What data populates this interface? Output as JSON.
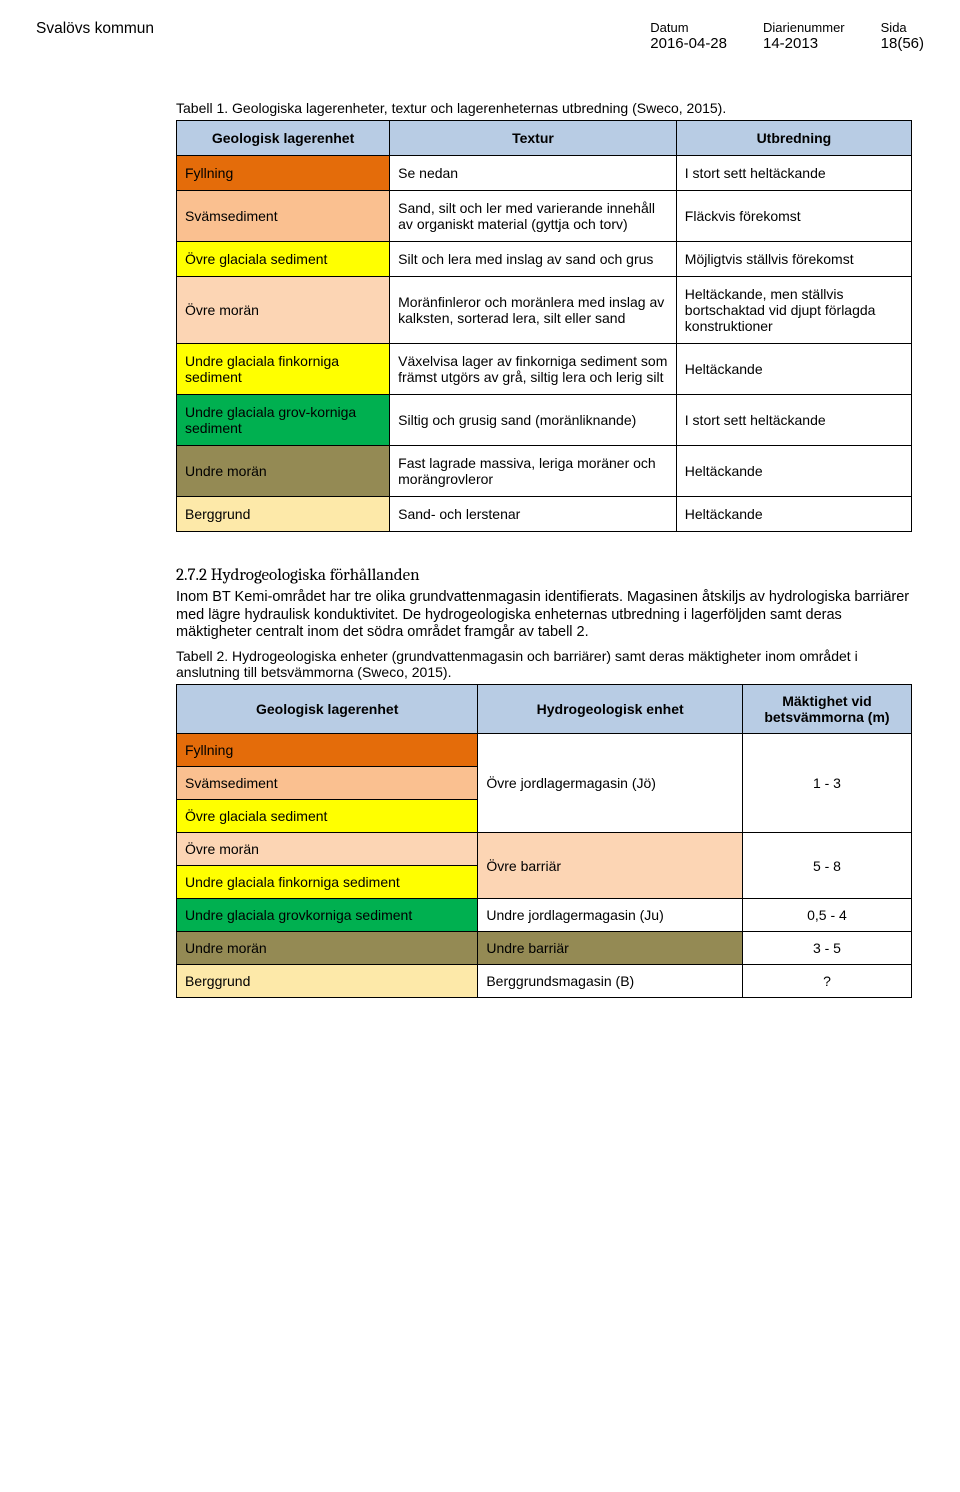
{
  "header": {
    "org": "Svalövs kommun",
    "datum_label": "Datum",
    "datum_value": "2016-04-28",
    "diarie_label": "Diarienummer",
    "diarie_value": "14-2013",
    "sida_label": "Sida",
    "sida_value": "18(56)"
  },
  "table1": {
    "caption": "Tabell 1. Geologiska lagerenheter, textur och lagerenheternas utbredning (Sweco, 2015).",
    "headers": [
      "Geologisk lagerenhet",
      "Textur",
      "Utbredning"
    ],
    "rows": [
      {
        "unit": "Fyllning",
        "tex": "Se nedan",
        "spread": "I stort sett heltäckande",
        "cls": "c-orange"
      },
      {
        "unit": "Svämsediment",
        "tex": "Sand, silt och ler med varierande innehåll av organiskt material (gyttja och torv)",
        "spread": "Fläckvis förekomst",
        "cls": "c-lightorange"
      },
      {
        "unit": "Övre glaciala sediment",
        "tex": "Silt och lera med inslag av sand och grus",
        "spread": "Möjligtvis ställvis förekomst",
        "cls": "c-yellow"
      },
      {
        "unit": "Övre morän",
        "tex": "Moränfinleror och moränlera med inslag av kalksten, sorterad lera, silt eller sand",
        "spread": "Heltäckande, men ställvis bortschaktad vid djupt förlagda konstruktioner",
        "cls": "c-peach"
      },
      {
        "unit": "Undre glaciala finkorniga sediment",
        "tex": "Växelvisa lager av finkorniga sediment som främst utgörs av grå, siltig lera och lerig silt",
        "spread": "Heltäckande",
        "cls": "c-yellow"
      },
      {
        "unit": "Undre glaciala grov-korniga sediment",
        "tex": "Siltig och grusig sand (moränliknande)",
        "spread": "I stort sett heltäckande",
        "cls": "c-green"
      },
      {
        "unit": "Undre morän",
        "tex": "Fast lagrade massiva, leriga moräner och morängrovleror",
        "spread": "Heltäckande",
        "cls": "c-tan"
      },
      {
        "unit": "Berggrund",
        "tex": "Sand- och lerstenar",
        "spread": "Heltäckande",
        "cls": "c-sand"
      }
    ]
  },
  "section272": {
    "heading": "2.7.2   Hydrogeologiska förhållanden",
    "para": "Inom BT Kemi-området har tre olika grundvattenmagasin identifierats. Magasinen åtskiljs av hydrologiska barriärer med lägre hydraulisk konduktivitet. De hydrogeologiska enheternas utbredning i lagerföljden samt deras mäktigheter centralt inom det södra området framgår av tabell 2."
  },
  "table2": {
    "caption": "Tabell 2. Hydrogeologiska enheter (grundvattenmagasin och barriärer) samt deras mäktigheter inom området i anslutning till betsvämmorna (Sweco, 2015).",
    "headers": [
      "Geologisk lagerenhet",
      "Hydrogeologisk enhet",
      "Mäktighet vid betsvämmorna (m)"
    ],
    "group1": {
      "rows": [
        {
          "unit": "Fyllning",
          "cls": "c-orange"
        },
        {
          "unit": "Svämsediment",
          "cls": "c-lightorange"
        },
        {
          "unit": "Övre glaciala sediment",
          "cls": "c-yellow"
        }
      ],
      "hydro": "Övre jordlagermagasin (Jö)",
      "m": "1 - 3"
    },
    "group2": {
      "rows": [
        {
          "unit": "Övre morän",
          "cls": "c-peach"
        },
        {
          "unit": "Undre glaciala finkorniga sediment",
          "cls": "c-yellow"
        }
      ],
      "hydro": "Övre barriär",
      "m": "5 - 8",
      "hcls": "c-peach"
    },
    "group3": {
      "rows": [
        {
          "unit": "Undre glaciala grovkorniga sediment",
          "cls": "c-green"
        }
      ],
      "hydro": "Undre jordlagermagasin (Ju)",
      "m": "0,5 - 4"
    },
    "group4": {
      "rows": [
        {
          "unit": "Undre morän",
          "cls": "c-tan"
        }
      ],
      "hydro": "Undre barriär",
      "m": "3 - 5",
      "hcls": "c-tan"
    },
    "group5": {
      "rows": [
        {
          "unit": "Berggrund",
          "cls": "c-sand"
        }
      ],
      "hydro": "Berggrundsmagasin (B)",
      "m": "?"
    }
  }
}
